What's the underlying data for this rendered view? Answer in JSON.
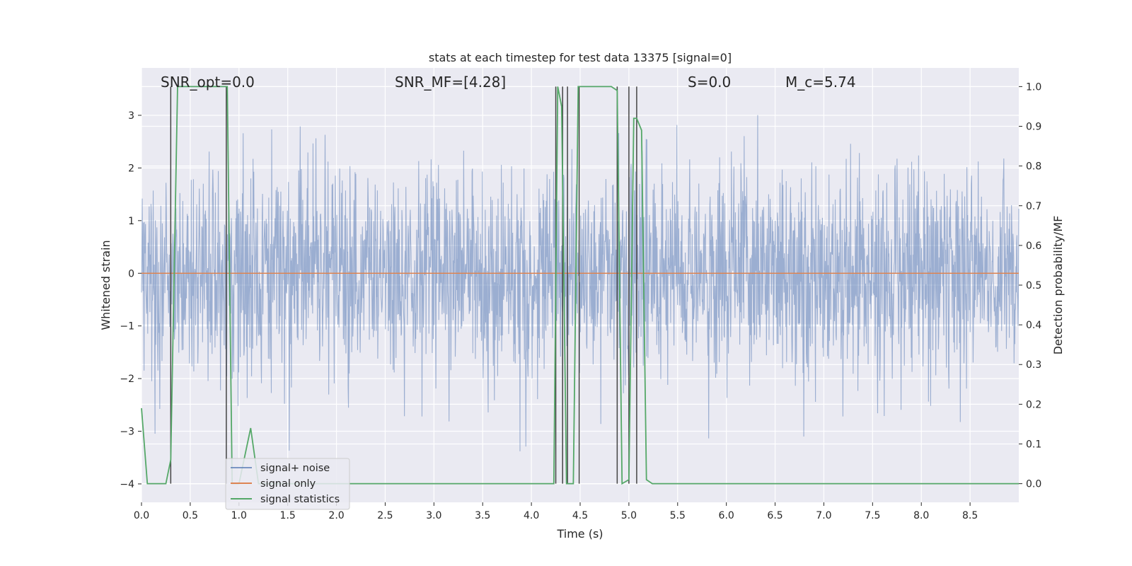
{
  "chart_data": {
    "type": "line",
    "title": "stats at each timestep for test data 13375 [signal=0]",
    "xlabel": "Time (s)",
    "ylabel": "Whitened strain",
    "ylabel_right": "Detection probability/MF",
    "xlim": [
      0,
      9.0
    ],
    "ylim": [
      -4.35,
      3.9
    ],
    "ylim_right": [
      -0.047,
      1.047
    ],
    "x_ticks": [
      0.0,
      0.5,
      1.0,
      1.5,
      2.0,
      2.5,
      3.0,
      3.5,
      4.0,
      4.5,
      5.0,
      5.5,
      6.0,
      6.5,
      7.0,
      7.5,
      8.0,
      8.5
    ],
    "x_tick_labels": [
      "0.0",
      "0.5",
      "1.0",
      "1.5",
      "2.0",
      "2.5",
      "3.0",
      "3.5",
      "4.0",
      "4.5",
      "5.0",
      "5.5",
      "6.0",
      "6.5",
      "7.0",
      "7.5",
      "8.0",
      "8.5"
    ],
    "y_ticks": [
      -4,
      -3,
      -2,
      -1,
      0,
      1,
      2,
      3
    ],
    "y_tick_labels": [
      "−4",
      "−3",
      "−2",
      "−1",
      "0",
      "1",
      "2",
      "3"
    ],
    "y_right_ticks": [
      0.0,
      0.1,
      0.2,
      0.3,
      0.4,
      0.5,
      0.6,
      0.7,
      0.8,
      0.9,
      1.0
    ],
    "y_right_tick_labels": [
      "0.0",
      "0.1",
      "0.2",
      "0.3",
      "0.4",
      "0.5",
      "0.6",
      "0.7",
      "0.8",
      "0.9",
      "1.0"
    ],
    "grid": true,
    "legend_position": "lower-left",
    "colors": {
      "background": "#eaeaf2",
      "grid": "#ffffff",
      "noise": "#4c72b0",
      "signal_only": "#dd8452",
      "statistics": "#55a868",
      "markers": "#444444"
    },
    "annotations": [
      "SNR_opt=0.0",
      "SNR_MF=[4.28]",
      "S=0.0",
      "M_c=5.74"
    ],
    "series": [
      {
        "name": "signal+ noise",
        "axis": "left",
        "description": "whitened noisy strain, roughly Gaussian noise with standard deviation about 1, extremes near +3.5 and -4",
        "noise_std": 1.0,
        "approx_range": [
          -4.0,
          3.5
        ]
      },
      {
        "name": "signal only",
        "axis": "left",
        "x": [
          0.0,
          9.0
        ],
        "y": [
          0.0,
          0.0
        ]
      },
      {
        "name": "signal statistics",
        "axis": "right",
        "x": [
          0.0,
          0.06,
          0.25,
          0.3,
          0.37,
          0.4,
          0.88,
          0.93,
          0.98,
          1.0,
          1.12,
          1.2,
          1.3,
          2.0,
          4.0,
          4.23,
          4.27,
          4.31,
          4.36,
          4.39,
          4.43,
          4.48,
          4.52,
          4.56,
          4.62,
          4.82,
          4.88,
          4.93,
          5.0,
          5.05,
          5.08,
          5.13,
          5.18,
          5.24,
          9.0
        ],
        "y": [
          0.19,
          0.0,
          0.0,
          0.06,
          1.0,
          1.0,
          1.0,
          0.0,
          0.0,
          0.0,
          0.14,
          0.0,
          0.0,
          0.0,
          0.0,
          0.0,
          1.0,
          0.95,
          0.0,
          0.0,
          0.0,
          1.0,
          1.0,
          1.0,
          1.0,
          1.0,
          0.99,
          0.0,
          0.01,
          0.92,
          0.92,
          0.89,
          0.01,
          0.0,
          0.0
        ]
      }
    ],
    "vertical_markers": [
      0.3,
      0.87,
      4.25,
      4.32,
      4.37,
      4.49,
      4.88,
      5.0,
      5.08
    ]
  },
  "legend": {
    "noise_label": "signal+ noise",
    "signal_label": "signal only",
    "stats_label": "signal statistics"
  }
}
